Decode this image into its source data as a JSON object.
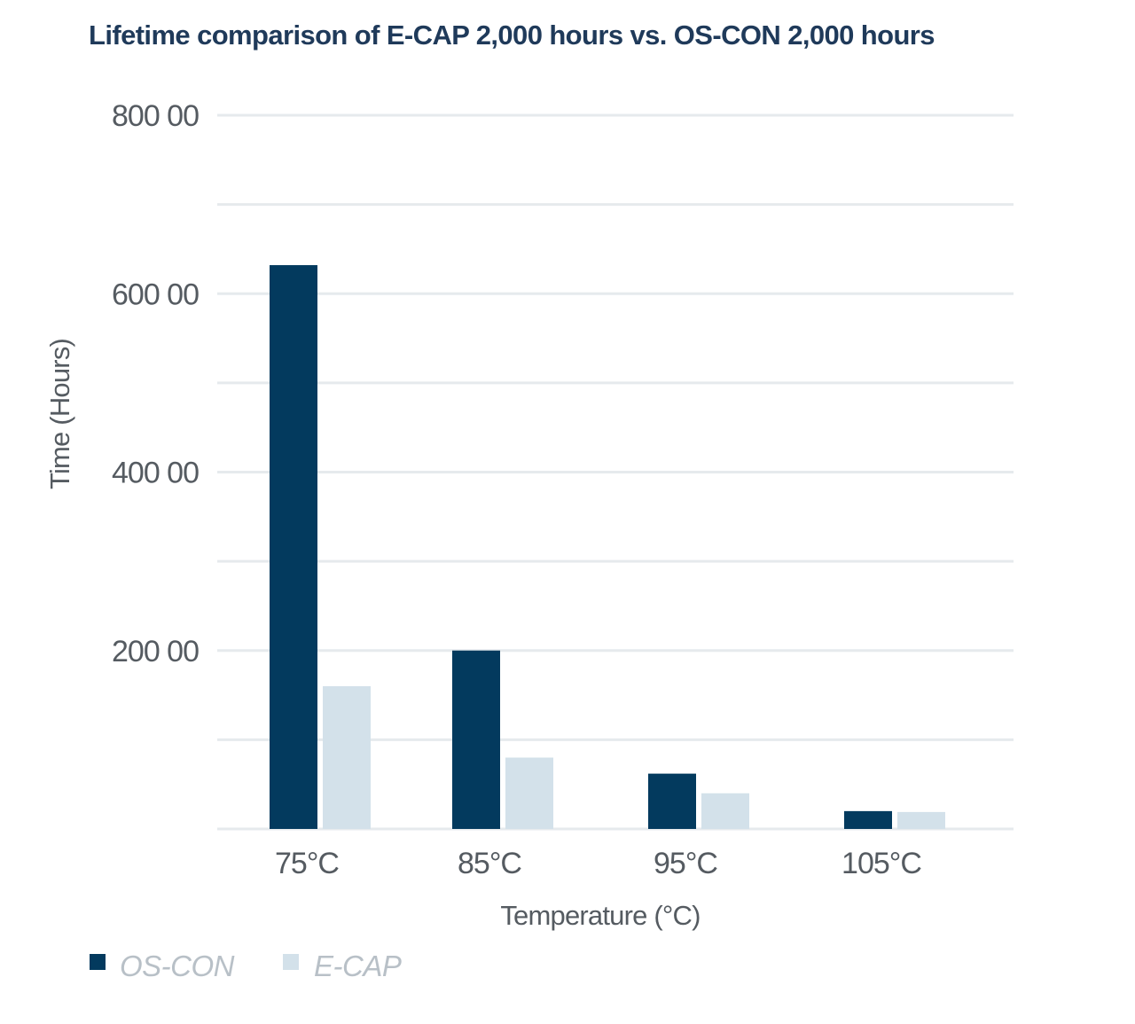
{
  "chart_data": {
    "type": "bar",
    "title": "Lifetime comparison of E-CAP 2,000 hours vs. OS-CON 2,000 hours",
    "xlabel": "Temperature (°C)",
    "ylabel": "Time (Hours)",
    "categories": [
      "75°C",
      "85°C",
      "95°C",
      "105°C"
    ],
    "series": [
      {
        "name": "OS-CON",
        "values": [
          632,
          200,
          62,
          20
        ],
        "color": "#033a5e"
      },
      {
        "name": "E-CAP",
        "values": [
          160,
          80,
          40,
          19
        ],
        "color": "#d3e1ea"
      }
    ],
    "ylim": [
      0,
      800
    ],
    "yticks": [
      {
        "value": 200,
        "label": "200 00"
      },
      {
        "value": 400,
        "label": "400 00"
      },
      {
        "value": 600,
        "label": "600 00"
      },
      {
        "value": 800,
        "label": "800 00"
      }
    ],
    "gridlines": [
      0,
      100,
      200,
      300,
      400,
      500,
      600,
      700,
      800
    ],
    "grid": true,
    "gridColor": "#e6eaed",
    "legend": "bottom-left"
  }
}
